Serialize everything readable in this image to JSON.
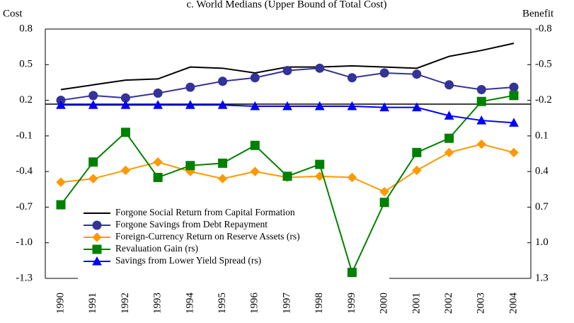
{
  "chart_data": {
    "type": "line",
    "title": "c. World Medians (Upper Bound of Total Cost)",
    "y_label": "Cost",
    "y2_label": "Benefit",
    "categories": [
      "1990",
      "1991",
      "1992",
      "1993",
      "1994",
      "1995",
      "1996",
      "1997",
      "1998",
      "1999",
      "2000",
      "2001",
      "2002",
      "2003",
      "2004"
    ],
    "ylim": [
      -1.3,
      0.8
    ],
    "yticks": [
      0.8,
      0.5,
      0.2,
      -0.1,
      -0.4,
      -0.7,
      {
        "value": -1,
        "label": "-1.0"
      },
      -1.3
    ],
    "y2lim": [
      1.3,
      -0.8
    ],
    "y2ticks": [
      -0.8,
      -0.5,
      -0.2,
      0.1,
      0.4,
      0.7,
      {
        "value": 1,
        "label": "1.0"
      },
      1.3
    ],
    "legend": "lower left",
    "series": [
      {
        "name": "Forgone Social Return from Capital Formation",
        "color": "#000000",
        "marker": "none",
        "values": [
          0.29,
          0.33,
          0.37,
          0.38,
          0.48,
          0.47,
          0.43,
          0.48,
          0.48,
          0.49,
          0.48,
          0.47,
          0.57,
          0.62,
          0.68
        ]
      },
      {
        "name": "Forgone Savings from Debt Repayment",
        "color": "#333399",
        "marker": "circle",
        "values": [
          0.2,
          0.24,
          0.22,
          0.26,
          0.31,
          0.36,
          0.39,
          0.45,
          0.47,
          0.39,
          0.43,
          0.42,
          0.33,
          0.29,
          0.31
        ]
      },
      {
        "name": "Foreign-Currency Return on Reserve Assets (rs)",
        "color": "#ff9900",
        "marker": "diamond",
        "axis": "y2",
        "values": [
          0.49,
          0.46,
          0.39,
          0.32,
          0.4,
          0.46,
          0.4,
          0.45,
          0.44,
          0.45,
          0.57,
          0.39,
          0.24,
          0.17,
          0.24
        ]
      },
      {
        "name": "Revaluation Gain (rs)",
        "color": "#008000",
        "marker": "square",
        "axis": "y2",
        "values": [
          0.68,
          0.32,
          0.07,
          0.45,
          0.35,
          0.33,
          0.18,
          0.44,
          0.34,
          1.25,
          0.66,
          0.24,
          0.12,
          -0.19,
          -0.24
        ]
      },
      {
        "name": "Savings from Lower Yield Spread (rs)",
        "color": "#0000ff",
        "marker": "triangle",
        "axis": "y2",
        "values": [
          -0.16,
          -0.16,
          -0.16,
          -0.16,
          -0.16,
          -0.16,
          -0.15,
          -0.15,
          -0.15,
          -0.15,
          -0.14,
          -0.14,
          -0.07,
          -0.03,
          -0.01
        ]
      }
    ]
  }
}
